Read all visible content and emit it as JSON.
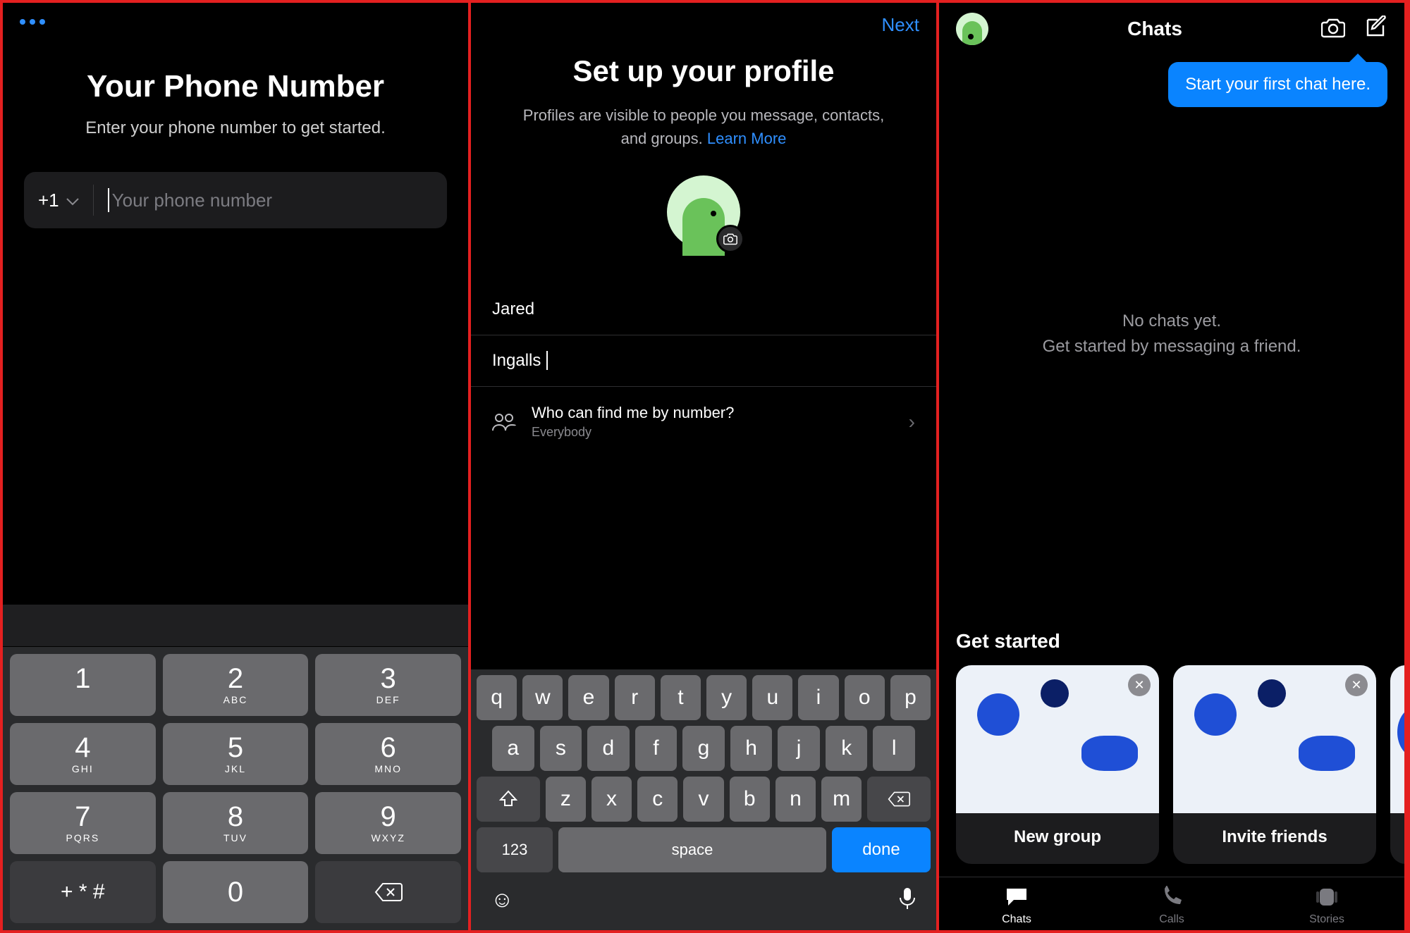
{
  "colors": {
    "background": "#000000",
    "frame_border": "#e42020",
    "accent_blue": "#0a84ff",
    "link_blue": "#2f8fff",
    "key_bg": "#6a6a6d",
    "key_dark": "#47474a",
    "field_bg": "#1c1c1e",
    "subtle_text": "#9b9ba0",
    "avatar_bg": "#d4f5d1",
    "dino_green": "#6ac25a"
  },
  "screen1": {
    "title": "Your Phone Number",
    "subtitle": "Enter your phone number to get started.",
    "country_code": "+1",
    "placeholder": "Your phone number",
    "keypad": {
      "keys": [
        {
          "num": "1",
          "let": ""
        },
        {
          "num": "2",
          "let": "ABC"
        },
        {
          "num": "3",
          "let": "DEF"
        },
        {
          "num": "4",
          "let": "GHI"
        },
        {
          "num": "5",
          "let": "JKL"
        },
        {
          "num": "6",
          "let": "MNO"
        },
        {
          "num": "7",
          "let": "PQRS"
        },
        {
          "num": "8",
          "let": "TUV"
        },
        {
          "num": "9",
          "let": "WXYZ"
        }
      ],
      "symbol_key": "+ * #",
      "zero_key": "0"
    }
  },
  "screen2": {
    "next_label": "Next",
    "title": "Set up your profile",
    "subtitle_a": "Profiles are visible to people you message, contacts, and groups. ",
    "learn_more": "Learn More",
    "first_name": "Jared",
    "last_name": "Ingalls",
    "find_title": "Who can find me by number?",
    "find_value": "Everybody",
    "keyboard": {
      "row1": [
        "q",
        "w",
        "e",
        "r",
        "t",
        "y",
        "u",
        "i",
        "o",
        "p"
      ],
      "row2": [
        "a",
        "s",
        "d",
        "f",
        "g",
        "h",
        "j",
        "k",
        "l"
      ],
      "row3": [
        "z",
        "x",
        "c",
        "v",
        "b",
        "n",
        "m"
      ],
      "num_label": "123",
      "space_label": "space",
      "done_label": "done"
    }
  },
  "screen3": {
    "header_title": "Chats",
    "tooltip": "Start your first chat here.",
    "empty_line1": "No chats yet.",
    "empty_line2": "Get started by messaging a friend.",
    "get_started": "Get started",
    "cards": [
      {
        "label": "New group"
      },
      {
        "label": "Invite friends"
      }
    ],
    "tabs": [
      {
        "label": "Chats",
        "active": true
      },
      {
        "label": "Calls",
        "active": false
      },
      {
        "label": "Stories",
        "active": false
      }
    ]
  }
}
